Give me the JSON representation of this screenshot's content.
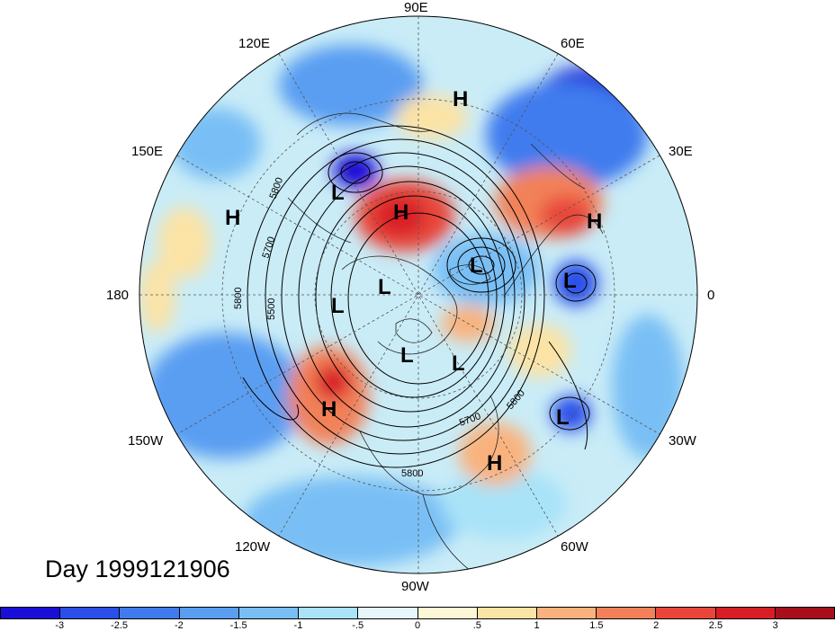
{
  "title": "Day 1999121906",
  "longitude_labels": {
    "top": "90E",
    "upper_left": "120E",
    "upper_right": "60E",
    "left_upper": "150E",
    "right_upper": "30E",
    "left": "180",
    "right": "0",
    "left_lower": "150W",
    "right_lower": "30W",
    "lower_left": "120W",
    "lower_right": "60W",
    "bottom": "90W"
  },
  "contour_labels": [
    "5800",
    "5700",
    "5500",
    "5800",
    "5700",
    "5800",
    "5800"
  ],
  "pressure_centers": [
    {
      "type": "H",
      "id": "h-siberia-north"
    },
    {
      "type": "L",
      "id": "l-east-siberia"
    },
    {
      "type": "H",
      "id": "h-central-siberia"
    },
    {
      "type": "H",
      "id": "h-west-pacific"
    },
    {
      "type": "H",
      "id": "h-europe"
    },
    {
      "type": "L",
      "id": "l-barents"
    },
    {
      "type": "L",
      "id": "l-atlantic-north"
    },
    {
      "type": "L",
      "id": "l-arctic-1"
    },
    {
      "type": "L",
      "id": "l-arctic-2"
    },
    {
      "type": "L",
      "id": "l-canada-1"
    },
    {
      "type": "L",
      "id": "l-canada-2"
    },
    {
      "type": "H",
      "id": "h-west-america"
    },
    {
      "type": "L",
      "id": "l-atlantic-south"
    },
    {
      "type": "H",
      "id": "h-caribbean"
    }
  ],
  "colorbar": {
    "ticks": [
      "-3",
      "-2.5",
      "-2",
      "-1.5",
      "-1",
      "-.5",
      "0",
      ".5",
      "1",
      "1.5",
      "2",
      "2.5",
      "3"
    ],
    "colors": [
      "#1a0fd6",
      "#2a4fe8",
      "#3f7bee",
      "#5a9ef2",
      "#79bff5",
      "#a8e3f8",
      "#e6f6fb",
      "#fdf7d6",
      "#fce3a6",
      "#f9b27d",
      "#f28159",
      "#e8463a",
      "#d81e25",
      "#a80f1c"
    ]
  }
}
